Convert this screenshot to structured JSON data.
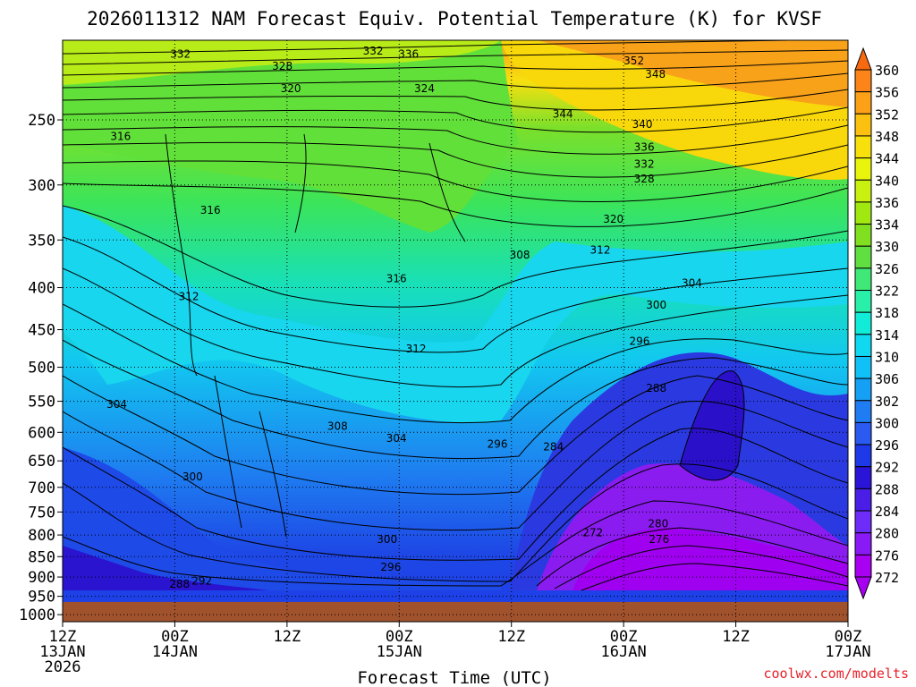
{
  "chart_data": {
    "type": "heatmap",
    "title": "2026011312 NAM Forecast Equiv. Potential Temperature (K) for KVSF",
    "xlabel": "Forecast Time (UTC)",
    "ylabel": "",
    "credit": "coolwx.com/modelts",
    "x_ticks": [
      {
        "hour": 0,
        "lines": [
          "12Z",
          "13JAN",
          "2026"
        ]
      },
      {
        "hour": 12,
        "lines": [
          "00Z",
          "14JAN"
        ]
      },
      {
        "hour": 24,
        "lines": [
          "12Z"
        ]
      },
      {
        "hour": 36,
        "lines": [
          "00Z",
          "15JAN"
        ]
      },
      {
        "hour": 48,
        "lines": [
          "12Z"
        ]
      },
      {
        "hour": 60,
        "lines": [
          "00Z",
          "16JAN"
        ]
      },
      {
        "hour": 72,
        "lines": [
          "12Z"
        ]
      },
      {
        "hour": 84,
        "lines": [
          "00Z",
          "17JAN"
        ]
      }
    ],
    "xlim": [
      0,
      84
    ],
    "y_ticks": [
      250,
      300,
      350,
      400,
      450,
      500,
      550,
      600,
      650,
      700,
      750,
      800,
      850,
      900,
      950,
      1000
    ],
    "ylim": [
      200,
      1020
    ],
    "y_scale": "log",
    "grid": true,
    "colorbar": {
      "levels": [
        272,
        276,
        280,
        284,
        288,
        292,
        296,
        300,
        302,
        306,
        310,
        314,
        318,
        322,
        326,
        330,
        334,
        336,
        340,
        344,
        348,
        352,
        356,
        360
      ],
      "colors": [
        "#a800f0",
        "#8a1af5",
        "#6e2cf8",
        "#4a1ee6",
        "#2a14d8",
        "#1e3ae8",
        "#2a5af0",
        "#1f7cf2",
        "#16a0f5",
        "#12c0f8",
        "#10d8f0",
        "#10ecd8",
        "#28f0a8",
        "#40e878",
        "#60e040",
        "#80e020",
        "#a0e810",
        "#c8f010",
        "#e8f40c",
        "#f8e00c",
        "#fcc010",
        "#fca018",
        "#fc8418",
        "#f86a10"
      ]
    },
    "ground_pressure_hpa": 965,
    "series": [
      {
        "name": "",
        "levels_K": [
          272,
          276,
          280,
          284,
          288,
          292,
          296,
          300,
          304,
          308,
          312,
          316,
          320,
          324,
          328,
          332,
          336,
          340,
          344,
          348,
          352
        ]
      }
    ],
    "annotations": [
      {
        "text": "332",
        "hour": 12.6,
        "p": 208
      },
      {
        "text": "328",
        "hour": 23.5,
        "p": 215
      },
      {
        "text": "332",
        "hour": 33.2,
        "p": 206
      },
      {
        "text": "336",
        "hour": 37,
        "p": 208
      },
      {
        "text": "320",
        "hour": 24.4,
        "p": 229
      },
      {
        "text": "324",
        "hour": 38.7,
        "p": 229
      },
      {
        "text": "316",
        "hour": 6.2,
        "p": 262
      },
      {
        "text": "316",
        "hour": 15.8,
        "p": 322
      },
      {
        "text": "312",
        "hour": 13.5,
        "p": 410
      },
      {
        "text": "316",
        "hour": 35.7,
        "p": 390
      },
      {
        "text": "312",
        "hour": 37.8,
        "p": 475
      },
      {
        "text": "304",
        "hour": 5.8,
        "p": 555
      },
      {
        "text": "308",
        "hour": 29.4,
        "p": 590
      },
      {
        "text": "304",
        "hour": 35.7,
        "p": 610
      },
      {
        "text": "300",
        "hour": 13.9,
        "p": 680
      },
      {
        "text": "300",
        "hour": 34.7,
        "p": 810
      },
      {
        "text": "296",
        "hour": 35.1,
        "p": 875
      },
      {
        "text": "288",
        "hour": 12.5,
        "p": 918
      },
      {
        "text": "292",
        "hour": 14.9,
        "p": 910
      },
      {
        "text": "308",
        "hour": 48.9,
        "p": 365
      },
      {
        "text": "312",
        "hour": 57.5,
        "p": 360
      },
      {
        "text": "320",
        "hour": 58.9,
        "p": 330
      },
      {
        "text": "344",
        "hour": 53.5,
        "p": 246
      },
      {
        "text": "352",
        "hour": 61.1,
        "p": 212
      },
      {
        "text": "348",
        "hour": 63.4,
        "p": 220
      },
      {
        "text": "340",
        "hour": 62,
        "p": 253
      },
      {
        "text": "336",
        "hour": 62.2,
        "p": 270
      },
      {
        "text": "332",
        "hour": 62.2,
        "p": 283
      },
      {
        "text": "328",
        "hour": 62.2,
        "p": 295
      },
      {
        "text": "304",
        "hour": 67.3,
        "p": 395
      },
      {
        "text": "300",
        "hour": 63.5,
        "p": 420
      },
      {
        "text": "296",
        "hour": 61.7,
        "p": 465
      },
      {
        "text": "288",
        "hour": 63.5,
        "p": 530
      },
      {
        "text": "296",
        "hour": 46.5,
        "p": 620
      },
      {
        "text": "284",
        "hour": 52.5,
        "p": 625
      },
      {
        "text": "280",
        "hour": 63.7,
        "p": 775
      },
      {
        "text": "276",
        "hour": 63.8,
        "p": 810
      },
      {
        "text": "272",
        "hour": 56.7,
        "p": 795
      }
    ]
  }
}
